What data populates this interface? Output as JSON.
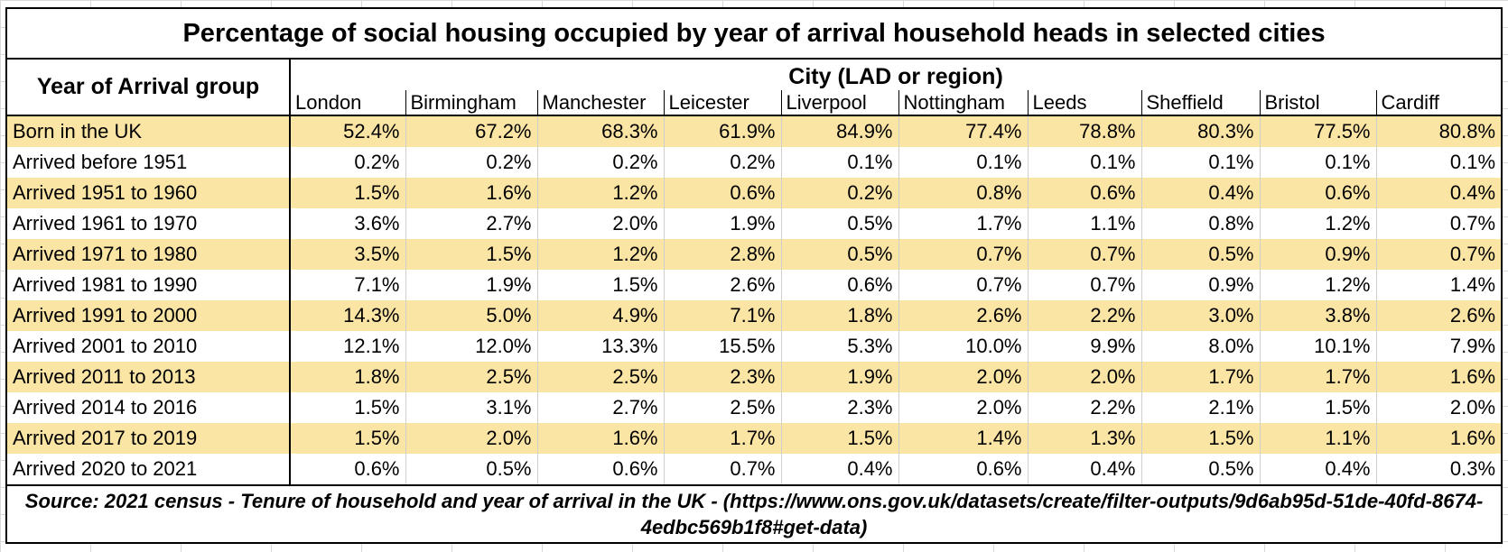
{
  "title": "Percentage of social housing occupied by year of arrival household heads in selected cities",
  "row_header": "Year of Arrival group",
  "group_header": "City (LAD or region)",
  "columns": [
    "London",
    "Birmingham",
    "Manchester",
    "Leicester",
    "Liverpool",
    "Nottingham",
    "Leeds",
    "Sheffield",
    "Bristol",
    "Cardiff"
  ],
  "rows": [
    {
      "label": "Born in the UK",
      "values": [
        "52.4%",
        "67.2%",
        "68.3%",
        "61.9%",
        "84.9%",
        "77.4%",
        "78.8%",
        "80.3%",
        "77.5%",
        "80.8%"
      ]
    },
    {
      "label": "Arrived before 1951",
      "values": [
        "0.2%",
        "0.2%",
        "0.2%",
        "0.2%",
        "0.1%",
        "0.1%",
        "0.1%",
        "0.1%",
        "0.1%",
        "0.1%"
      ]
    },
    {
      "label": "Arrived 1951 to 1960",
      "values": [
        "1.5%",
        "1.6%",
        "1.2%",
        "0.6%",
        "0.2%",
        "0.8%",
        "0.6%",
        "0.4%",
        "0.6%",
        "0.4%"
      ]
    },
    {
      "label": "Arrived 1961 to 1970",
      "values": [
        "3.6%",
        "2.7%",
        "2.0%",
        "1.9%",
        "0.5%",
        "1.7%",
        "1.1%",
        "0.8%",
        "1.2%",
        "0.7%"
      ]
    },
    {
      "label": "Arrived 1971 to 1980",
      "values": [
        "3.5%",
        "1.5%",
        "1.2%",
        "2.8%",
        "0.5%",
        "0.7%",
        "0.7%",
        "0.5%",
        "0.9%",
        "0.7%"
      ]
    },
    {
      "label": "Arrived 1981 to 1990",
      "values": [
        "7.1%",
        "1.9%",
        "1.5%",
        "2.6%",
        "0.6%",
        "0.7%",
        "0.7%",
        "0.9%",
        "1.2%",
        "1.4%"
      ]
    },
    {
      "label": "Arrived 1991 to 2000",
      "values": [
        "14.3%",
        "5.0%",
        "4.9%",
        "7.1%",
        "1.8%",
        "2.6%",
        "2.2%",
        "3.0%",
        "3.8%",
        "2.6%"
      ]
    },
    {
      "label": "Arrived 2001 to 2010",
      "values": [
        "12.1%",
        "12.0%",
        "13.3%",
        "15.5%",
        "5.3%",
        "10.0%",
        "9.9%",
        "8.0%",
        "10.1%",
        "7.9%"
      ]
    },
    {
      "label": "Arrived 2011 to 2013",
      "values": [
        "1.8%",
        "2.5%",
        "2.5%",
        "2.3%",
        "1.9%",
        "2.0%",
        "2.0%",
        "1.7%",
        "1.7%",
        "1.6%"
      ]
    },
    {
      "label": "Arrived 2014 to 2016",
      "values": [
        "1.5%",
        "3.1%",
        "2.7%",
        "2.5%",
        "2.3%",
        "2.0%",
        "2.2%",
        "2.1%",
        "1.5%",
        "2.0%"
      ]
    },
    {
      "label": "Arrived 2017 to 2019",
      "values": [
        "1.5%",
        "2.0%",
        "1.6%",
        "1.7%",
        "1.5%",
        "1.4%",
        "1.3%",
        "1.5%",
        "1.1%",
        "1.6%"
      ]
    },
    {
      "label": "Arrived 2020 to 2021",
      "values": [
        "0.6%",
        "0.5%",
        "0.6%",
        "0.7%",
        "0.4%",
        "0.6%",
        "0.4%",
        "0.5%",
        "0.4%",
        "0.3%"
      ]
    }
  ],
  "source": "Source: 2021 census - Tenure of household and year of arrival in the UK - (https://www.ons.gov.uk/datasets/create/filter-outputs/9d6ab95d-51de-40fd-8674-4edbc569b1f8#get-data)",
  "colors": {
    "band": "#fbe5a5",
    "grid": "#d9d9d9"
  }
}
